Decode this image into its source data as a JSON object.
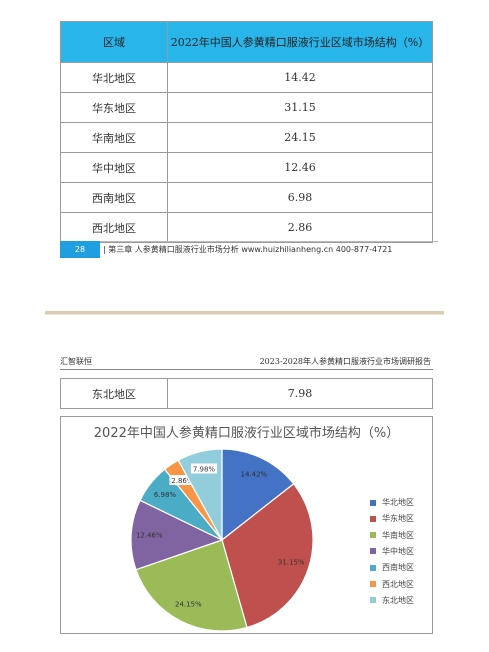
{
  "table": {
    "header": [
      "区域",
      "2022年中国人参黄精口服液行业区域市场结构（%）"
    ],
    "rows": [
      [
        "华北地区",
        "14.42"
      ],
      [
        "华东地区",
        "31.15"
      ],
      [
        "华南地区",
        "24.15"
      ],
      [
        "华中地区",
        "12.46"
      ],
      [
        "西南地区",
        "6.98"
      ],
      [
        "西北地区",
        "2.86"
      ]
    ]
  },
  "footer": {
    "page_number": "28",
    "text": "| 第三章  人参黄精口服液行业市场分析 www.huizhilianheng.cn      400-877-4721"
  },
  "header2": {
    "left": "汇智联恒",
    "right": "2023-2028年人参黄精口服液行业市场调研报告"
  },
  "table2": {
    "rows": [
      [
        "东北地区",
        "7.98"
      ]
    ]
  },
  "chart_data": {
    "type": "pie",
    "title": "2022年中国人参黄精口服液行业区域市场结构（%）",
    "categories": [
      "华北地区",
      "华东地区",
      "华南地区",
      "华中地区",
      "西南地区",
      "西北地区",
      "东北地区"
    ],
    "values": [
      14.42,
      31.15,
      24.15,
      12.46,
      6.98,
      2.86,
      7.98
    ],
    "data_labels": [
      "14.42%",
      "31.15%",
      "24.15%",
      "12.46%",
      "6.98%",
      "2.86%",
      "7.98%"
    ],
    "colors": [
      "#4472c4",
      "#c0504d",
      "#9bbb59",
      "#8064a2",
      "#4bacc6",
      "#f79646",
      "#92cddc"
    ],
    "legend": "right"
  }
}
